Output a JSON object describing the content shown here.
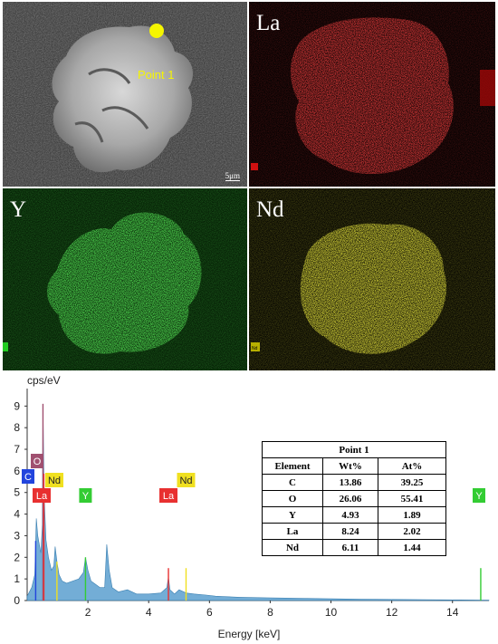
{
  "panels": {
    "sem": {
      "point_label": "Point 1",
      "scale_bar": "5μm"
    },
    "maps": [
      {
        "element": "La",
        "color": "#e01010"
      },
      {
        "element": "Y",
        "color": "#22cc22"
      },
      {
        "element": "Nd",
        "color": "#e8e010"
      }
    ],
    "nd_corner_tag": "Nd"
  },
  "spectrum": {
    "y_unit_label": "cps/eV",
    "x_axis_label": "Energy [keV]",
    "fill_color": "#5b9fcf",
    "peak_tags": [
      {
        "text": "C",
        "color": "#2244dd",
        "energy": 0.28
      },
      {
        "text": "O",
        "color": "#a05070",
        "energy": 0.52
      },
      {
        "text": "La",
        "color": "#e83030",
        "energy": 0.55
      },
      {
        "text": "Nd",
        "color": "#f0e020",
        "energy": 0.98
      },
      {
        "text": "Y",
        "color": "#33cc33",
        "energy": 1.92
      },
      {
        "text": "La",
        "color": "#e83030",
        "energy": 4.65
      },
      {
        "text": "Nd",
        "color": "#f0e020",
        "energy": 5.23
      },
      {
        "text": "Y",
        "color": "#33cc33",
        "energy": 14.93
      }
    ]
  },
  "chart_data": {
    "type": "area",
    "title": "",
    "xlabel": "Energy [keV]",
    "ylabel": "cps/eV",
    "xlim": [
      0,
      15.2
    ],
    "ylim": [
      0,
      9.6
    ],
    "x_ticks": [
      "2",
      "4",
      "6",
      "8",
      "10",
      "12",
      "14"
    ],
    "y_ticks": [
      "0",
      "1",
      "2",
      "3",
      "4",
      "5",
      "6",
      "7",
      "8",
      "9"
    ],
    "x": [
      0.0,
      0.15,
      0.25,
      0.3,
      0.35,
      0.45,
      0.5,
      0.52,
      0.56,
      0.62,
      0.7,
      0.8,
      0.88,
      0.92,
      0.98,
      1.05,
      1.15,
      1.3,
      1.5,
      1.7,
      1.85,
      1.92,
      2.0,
      2.1,
      2.2,
      2.4,
      2.55,
      2.62,
      2.7,
      2.8,
      3.0,
      3.3,
      3.6,
      4.0,
      4.4,
      4.6,
      4.65,
      4.7,
      4.85,
      5.0,
      5.23,
      5.5,
      5.9,
      6.2,
      6.5,
      7.0,
      8.0,
      9.0,
      10.0,
      11.0,
      12.0,
      13.0,
      14.0,
      15.0,
      15.2
    ],
    "series": [
      {
        "values": [
          0.2,
          0.6,
          1.2,
          3.8,
          3.0,
          2.2,
          3.5,
          9.1,
          4.8,
          2.8,
          2.0,
          1.4,
          1.6,
          2.5,
          1.8,
          1.2,
          0.9,
          0.8,
          0.9,
          1.0,
          1.3,
          2.0,
          1.4,
          0.9,
          0.8,
          0.6,
          0.6,
          2.6,
          1.4,
          0.6,
          0.4,
          0.5,
          0.3,
          0.3,
          0.35,
          0.6,
          1.1,
          0.5,
          0.3,
          0.5,
          0.35,
          0.3,
          0.25,
          0.2,
          0.18,
          0.15,
          0.12,
          0.1,
          0.08,
          0.06,
          0.05,
          0.04,
          0.03,
          0.02,
          0.02
        ]
      }
    ],
    "table": {
      "title": "Point 1",
      "headers": [
        "Element",
        "Wt%",
        "At%"
      ],
      "rows": [
        [
          "C",
          "13.86",
          "39.25"
        ],
        [
          "O",
          "26.06",
          "55.41"
        ],
        [
          "Y",
          "4.93",
          "1.89"
        ],
        [
          "La",
          "8.24",
          "2.02"
        ],
        [
          "Nd",
          "6.11",
          "1.44"
        ]
      ]
    }
  }
}
